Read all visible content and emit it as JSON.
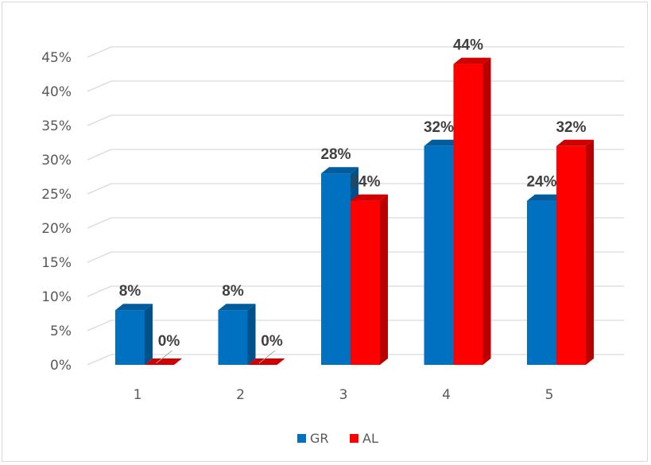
{
  "chart_data": {
    "type": "bar",
    "title": "",
    "xlabel": "",
    "ylabel": "",
    "categories": [
      "1",
      "2",
      "3",
      "4",
      "5"
    ],
    "series": [
      {
        "name": "GR",
        "values": [
          8,
          8,
          28,
          32,
          24
        ],
        "labels": [
          "8%",
          "8%",
          "28%",
          "32%",
          "24%"
        ],
        "color": "#0070C0"
      },
      {
        "name": "AL",
        "values": [
          0,
          0,
          24,
          44,
          32
        ],
        "labels": [
          "0%",
          "0%",
          "24%",
          "44%",
          "32%"
        ],
        "color": "#FF0000"
      }
    ],
    "ylim": [
      0,
      45
    ],
    "yticks": [
      "0%",
      "5%",
      "10%",
      "15%",
      "20%",
      "25%",
      "30%",
      "35%",
      "40%",
      "45%"
    ],
    "grid": true,
    "legend": "bottom",
    "style": "3d-clustered-column"
  }
}
